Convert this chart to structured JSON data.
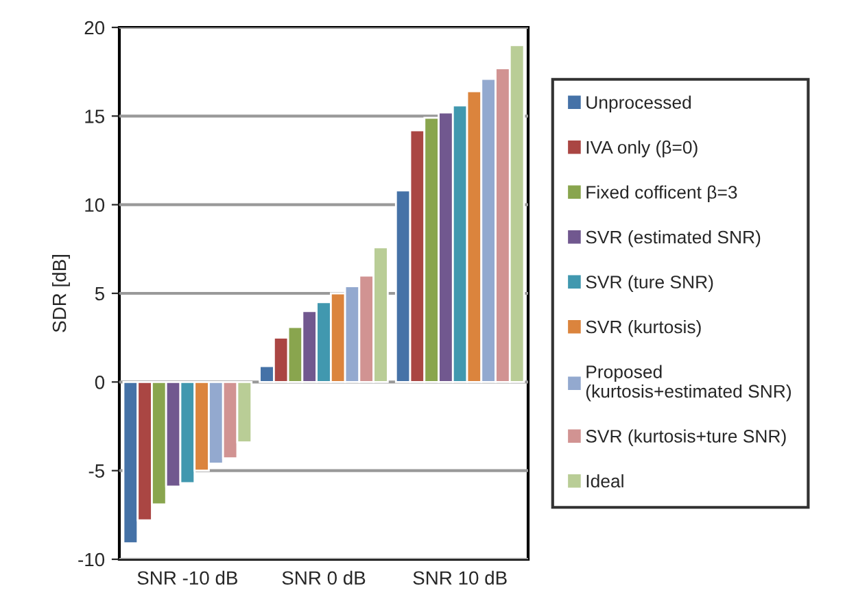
{
  "chart_data": {
    "type": "bar",
    "ylabel": "SDR [dB]",
    "categories": [
      "SNR -10 dB",
      "SNR 0 dB",
      "SNR 10 dB"
    ],
    "series": [
      {
        "name": "Unprocessed",
        "color": "#4572a7",
        "values": [
          -9.1,
          0.9,
          10.8
        ]
      },
      {
        "name": "IVA only (β=0)",
        "color": "#aa4643",
        "values": [
          -7.8,
          2.5,
          14.2
        ]
      },
      {
        "name": "Fixed cofficent β=3",
        "color": "#89a54e",
        "values": [
          -6.9,
          3.1,
          14.9
        ]
      },
      {
        "name": "SVR (estimated SNR)",
        "color": "#71588f",
        "values": [
          -5.9,
          4.0,
          15.2
        ]
      },
      {
        "name": "SVR (ture SNR)",
        "color": "#4198af",
        "values": [
          -5.7,
          4.5,
          15.6
        ]
      },
      {
        "name": "SVR (kurtosis)",
        "color": "#db843d",
        "values": [
          -5.0,
          5.0,
          16.4
        ]
      },
      {
        "name": "Proposed\n(kurtosis+estimated SNR)",
        "color": "#93a9cf",
        "values": [
          -4.6,
          5.4,
          17.1
        ]
      },
      {
        "name": "SVR (kurtosis+ture SNR)",
        "color": "#d19392",
        "values": [
          -4.3,
          6.0,
          17.7
        ]
      },
      {
        "name": "Ideal",
        "color": "#b9cd96",
        "values": [
          -3.4,
          7.6,
          19.0
        ]
      }
    ],
    "ylim": [
      -10,
      20
    ],
    "yticks": [
      -10,
      -5,
      0,
      5,
      10,
      15,
      20
    ],
    "grid": "y",
    "legend": "right"
  }
}
